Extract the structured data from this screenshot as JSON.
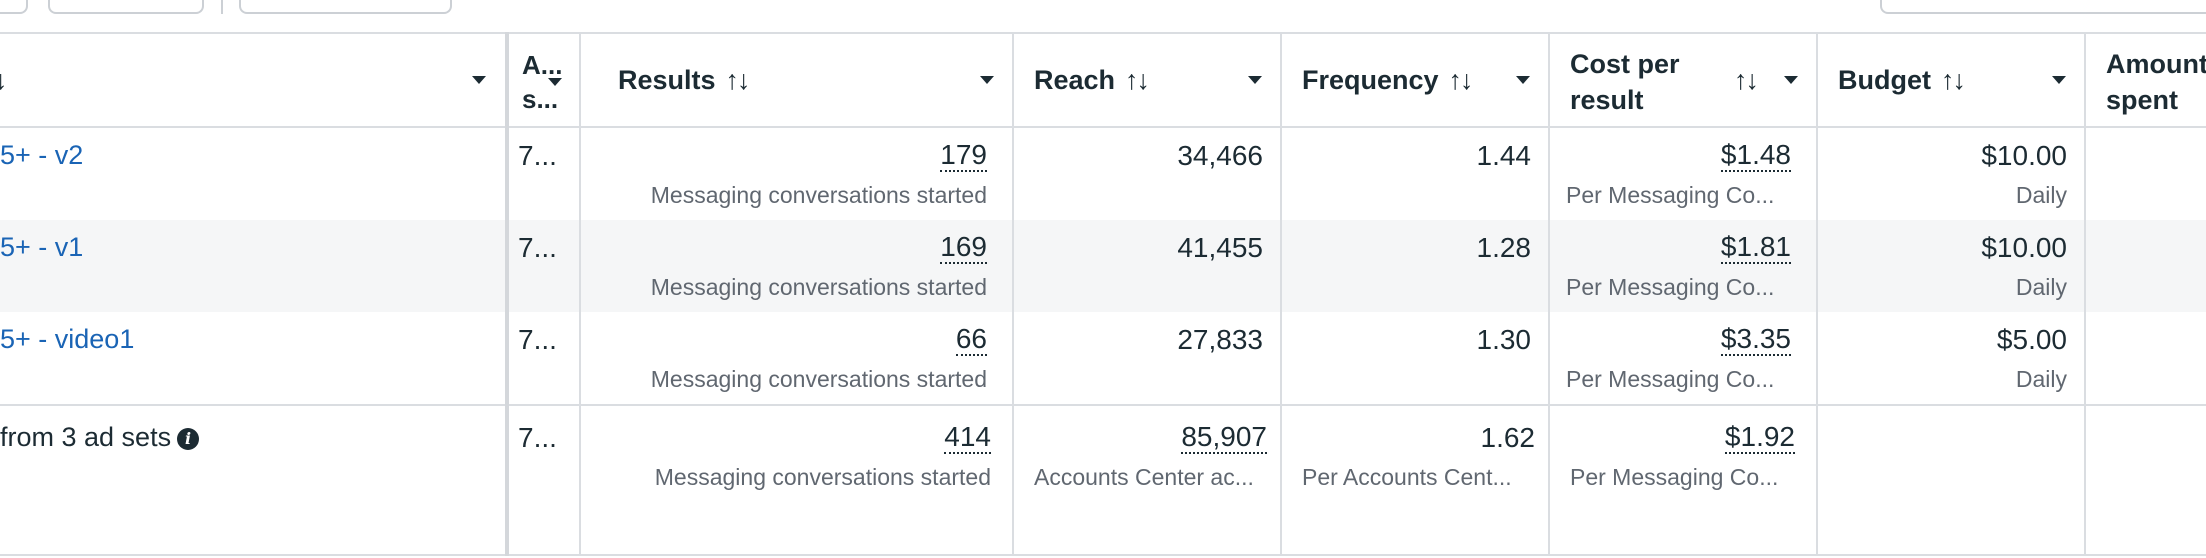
{
  "columns": {
    "name_sort": "↓",
    "abbr": "A...\ns...",
    "results": "Results",
    "reach": "Reach",
    "frequency": "Frequency",
    "cost_per_result": "Cost per\nresult",
    "budget": "Budget",
    "amount_spent": "Amount\nspent",
    "sort_icon": "↑↓"
  },
  "rows": [
    {
      "name": "5+ - v2",
      "abbr": "7...",
      "results": "179",
      "results_sub": "Messaging conversations started",
      "reach": "34,466",
      "frequency": "1.44",
      "cost": "$1.48",
      "cost_sub": "Per Messaging Co...",
      "budget": "$10.00",
      "budget_sub": "Daily"
    },
    {
      "name": "5+ - v1",
      "abbr": "7...",
      "results": "169",
      "results_sub": "Messaging conversations started",
      "reach": "41,455",
      "frequency": "1.28",
      "cost": "$1.81",
      "cost_sub": "Per Messaging Co...",
      "budget": "$10.00",
      "budget_sub": "Daily"
    },
    {
      "name": "5+ - video1",
      "abbr": "7...",
      "results": "66",
      "results_sub": "Messaging conversations started",
      "reach": "27,833",
      "frequency": "1.30",
      "cost": "$3.35",
      "cost_sub": "Per Messaging Co...",
      "budget": "$5.00",
      "budget_sub": "Daily"
    }
  ],
  "summary": {
    "label": "from 3 ad sets",
    "info_icon": "i",
    "abbr": "7...",
    "results": "414",
    "results_sub": "Messaging conversations started",
    "reach": "85,907",
    "reach_sub": "Accounts Center ac...",
    "frequency": "1.62",
    "frequency_sub": "Per Accounts Cent...",
    "cost": "$1.92",
    "cost_sub": "Per Messaging Co..."
  },
  "colors": {
    "link": "#1a64b5",
    "alt_row": "#f5f6f7",
    "grid": "#dadde1",
    "muted": "#606770"
  }
}
